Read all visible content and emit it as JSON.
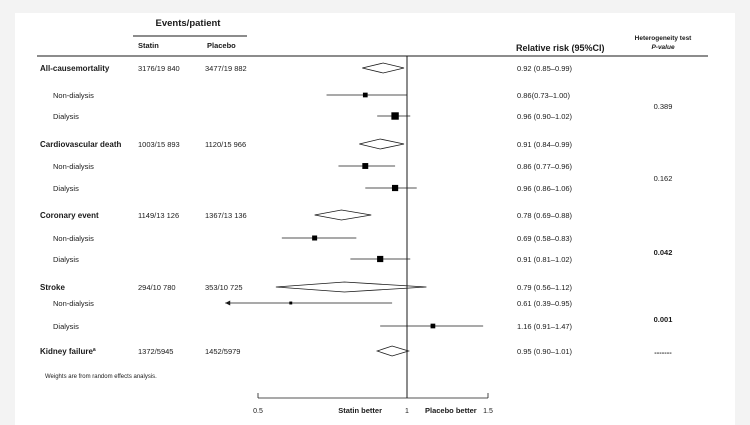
{
  "chart_data": {
    "type": "forest",
    "header_events": "Events/patient",
    "col_statin": "Statin",
    "col_placebo": "Placebo",
    "col_rr": "Relative risk (95%CI)",
    "col_het": "Heterogeneity test",
    "col_p": "P-value",
    "footnote": "Weights are from random effects analysis.",
    "axis": {
      "ticks": [
        "0.5",
        "1",
        "1.5"
      ],
      "tick_values": [
        0.5,
        1.0,
        1.5
      ],
      "left_label": "Statin better",
      "right_label": "Placebo better",
      "xlim": [
        0.5,
        1.5
      ]
    },
    "groups": [
      {
        "name": "All-causemortality",
        "statin": "3176/19 840",
        "placebo": "3477/19 882",
        "rr_text": "0.92 (0.85–0.99)",
        "rr": 0.92,
        "lo": 0.85,
        "hi": 0.99,
        "p": "0.389",
        "subs": [
          {
            "name": "Non-dialysis",
            "rr_text": "0.86(0.73–1.00)",
            "rr": 0.86,
            "lo": 0.73,
            "hi": 1.0,
            "weight": 0.45
          },
          {
            "name": "Dialysis",
            "rr_text": "0.96 (0.90–1.02)",
            "rr": 0.96,
            "lo": 0.9,
            "hi": 1.02,
            "weight": 0.9
          }
        ]
      },
      {
        "name": "Cardiovascular death",
        "statin": "1003/15 893",
        "placebo": "1120/15 966",
        "rr_text": "0.91 (0.84–0.99)",
        "rr": 0.91,
        "lo": 0.84,
        "hi": 0.99,
        "p": "0.162",
        "subs": [
          {
            "name": "Non-dialysis",
            "rr_text": "0.86 (0.77–0.96)",
            "rr": 0.86,
            "lo": 0.77,
            "hi": 0.96,
            "weight": 0.65
          },
          {
            "name": "Dialysis",
            "rr_text": "0.96 (0.86–1.06)",
            "rr": 0.96,
            "lo": 0.86,
            "hi": 1.06,
            "weight": 0.7
          }
        ]
      },
      {
        "name": "Coronary event",
        "statin": "1149/13 126",
        "placebo": "1367/13 136",
        "rr_text": "0.78 (0.69–0.88)",
        "rr": 0.78,
        "lo": 0.69,
        "hi": 0.88,
        "p": "0.042",
        "subs": [
          {
            "name": "Non-dialysis",
            "rr_text": "0.69 (0.58–0.83)",
            "rr": 0.69,
            "lo": 0.58,
            "hi": 0.83,
            "weight": 0.5
          },
          {
            "name": "Dialysis",
            "rr_text": "0.91 (0.81–1.02)",
            "rr": 0.91,
            "lo": 0.81,
            "hi": 1.02,
            "weight": 0.7
          }
        ]
      },
      {
        "name": "Stroke",
        "statin": "294/10 780",
        "placebo": "353/10 725",
        "rr_text": "0.79 (0.56–1.12)",
        "rr": 0.79,
        "lo": 0.56,
        "hi": 1.12,
        "p": "0.001",
        "subs": [
          {
            "name": "Non-dialysis",
            "rr_text": "0.61 (0.39–0.95)",
            "rr": 0.61,
            "lo": 0.39,
            "hi": 0.95,
            "weight": 0.15,
            "arrow_left": true
          },
          {
            "name": "Dialysis",
            "rr_text": "1.16 (0.91–1.47)",
            "rr": 1.16,
            "lo": 0.91,
            "hi": 1.47,
            "weight": 0.45
          }
        ]
      },
      {
        "name": "Kidney failure",
        "name_sup": "a",
        "statin": "1372/5945",
        "placebo": "1452/5979",
        "rr_text": "0.95 (0.90–1.01)",
        "rr": 0.95,
        "lo": 0.9,
        "hi": 1.01,
        "p": "-------",
        "subs": []
      }
    ]
  }
}
